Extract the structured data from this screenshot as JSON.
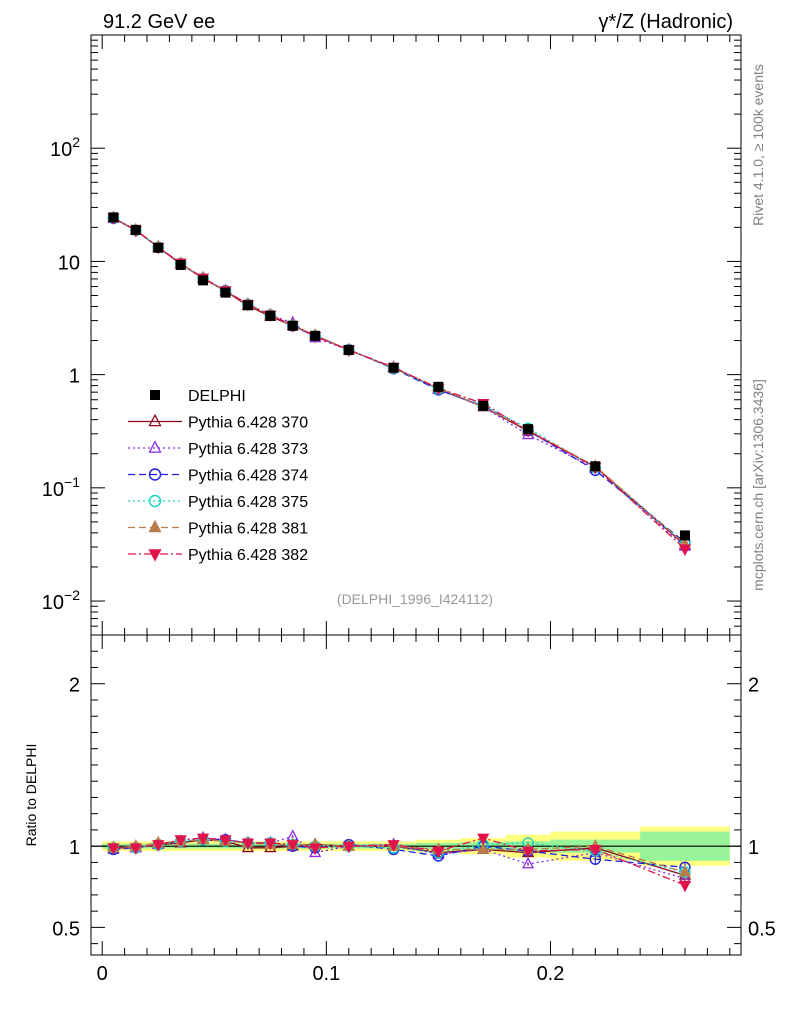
{
  "chart_data": {
    "type": "line",
    "title_left": "91.2 GeV ee",
    "title_right": "γ*/Z (Hadronic)",
    "watermark": "(DELPHI_1996_I424112)",
    "side_label_top": "Rivet 4.1.0, ≥ 100k events",
    "side_label_bottom": "mcplots.cern.ch [arXiv:1306.3436]",
    "ratio_ylabel": "Ratio to DELPHI",
    "xlim": [
      -0.005,
      0.285
    ],
    "ylim_main_log10": [
      -2.3,
      3.0
    ],
    "ylim_ratio": [
      0.33,
      2.3
    ],
    "x_ticks": [
      {
        "value": 0,
        "label": "0"
      },
      {
        "value": 0.1,
        "label": "0.1"
      },
      {
        "value": 0.2,
        "label": "0.2"
      }
    ],
    "main_y_ticks": [
      {
        "value": 0.01,
        "base": "10",
        "exp": "−2"
      },
      {
        "value": 0.1,
        "base": "10",
        "exp": "−1"
      },
      {
        "value": 1,
        "base": "1",
        "exp": ""
      },
      {
        "value": 10,
        "base": "10",
        "exp": ""
      },
      {
        "value": 100,
        "base": "10",
        "exp": "2"
      }
    ],
    "ratio_y_ticks": [
      {
        "value": 0.5,
        "label": "0.5"
      },
      {
        "value": 1,
        "label": "1"
      },
      {
        "value": 2,
        "label": "2"
      }
    ],
    "x": [
      0.005,
      0.015,
      0.025,
      0.035,
      0.045,
      0.055,
      0.065,
      0.075,
      0.085,
      0.095,
      0.11,
      0.13,
      0.15,
      0.17,
      0.19,
      0.22,
      0.26
    ],
    "x_edges": [
      0,
      0.01,
      0.02,
      0.03,
      0.04,
      0.05,
      0.06,
      0.07,
      0.08,
      0.09,
      0.1,
      0.12,
      0.14,
      0.16,
      0.18,
      0.2,
      0.24,
      0.28
    ],
    "data": {
      "name": "DELPHI",
      "values": [
        24.5,
        19.0,
        13.2,
        9.3,
        6.8,
        5.3,
        4.1,
        3.3,
        2.7,
        2.2,
        1.65,
        1.15,
        0.78,
        0.53,
        0.33,
        0.155,
        0.038
      ]
    },
    "band_yellow_halfwidth": [
      0.03,
      0.03,
      0.03,
      0.03,
      0.03,
      0.03,
      0.03,
      0.03,
      0.03,
      0.03,
      0.03,
      0.03,
      0.04,
      0.05,
      0.07,
      0.09,
      0.12
    ],
    "band_green_halfwidth": [
      0.015,
      0.015,
      0.015,
      0.015,
      0.015,
      0.015,
      0.015,
      0.015,
      0.015,
      0.015,
      0.015,
      0.015,
      0.02,
      0.025,
      0.03,
      0.04,
      0.09
    ],
    "series": [
      {
        "name": "Pythia 6.428 370",
        "color": "#8b0a1e",
        "dash": "",
        "marker": "triangle-open",
        "ratio": [
          0.99,
          0.99,
          1.01,
          1.02,
          1.04,
          1.03,
          0.99,
          0.99,
          1.0,
          1.01,
          1.0,
          1.0,
          0.96,
          0.98,
          0.96,
          0.99,
          0.82
        ]
      },
      {
        "name": "Pythia 6.428 373",
        "color": "#8a2be2",
        "dash": "2,3",
        "marker": "triangle-open",
        "ratio": [
          0.98,
          0.99,
          1.01,
          1.03,
          1.05,
          1.04,
          1.02,
          1.02,
          1.06,
          0.96,
          1.0,
          1.01,
          0.95,
          0.98,
          0.89,
          0.96,
          0.8
        ]
      },
      {
        "name": "Pythia 6.428 374",
        "color": "#1e1ee6",
        "dash": "7,4",
        "marker": "circle-open",
        "ratio": [
          0.98,
          0.99,
          1.01,
          1.03,
          1.04,
          1.04,
          1.02,
          1.02,
          1.0,
          0.99,
          1.01,
          0.98,
          0.94,
          1.0,
          0.97,
          0.92,
          0.87
        ]
      },
      {
        "name": "Pythia 6.428 375",
        "color": "#15d4c2",
        "dash": "2,3",
        "marker": "circle-open",
        "ratio": [
          0.99,
          0.99,
          1.01,
          1.03,
          1.04,
          1.03,
          1.02,
          1.02,
          1.01,
          1.0,
          1.0,
          0.99,
          0.96,
          1.01,
          1.02,
          0.97,
          0.84
        ]
      },
      {
        "name": "Pythia 6.428 381",
        "color": "#b87d4b",
        "dash": "7,4",
        "marker": "triangle-up-filled",
        "ratio": [
          0.99,
          1.0,
          1.02,
          1.03,
          1.04,
          1.03,
          1.02,
          1.01,
          1.01,
          1.01,
          1.0,
          1.0,
          0.98,
          0.98,
          0.98,
          1.0,
          0.84
        ]
      },
      {
        "name": "Pythia 6.428 382",
        "color": "#e0144b",
        "dash": "8,3,2,3",
        "marker": "triangle-down-filled",
        "ratio": [
          0.99,
          0.99,
          1.01,
          1.04,
          1.05,
          1.04,
          1.02,
          1.02,
          1.01,
          0.99,
          1.0,
          1.01,
          0.97,
          1.05,
          0.97,
          0.98,
          0.76
        ]
      }
    ]
  }
}
